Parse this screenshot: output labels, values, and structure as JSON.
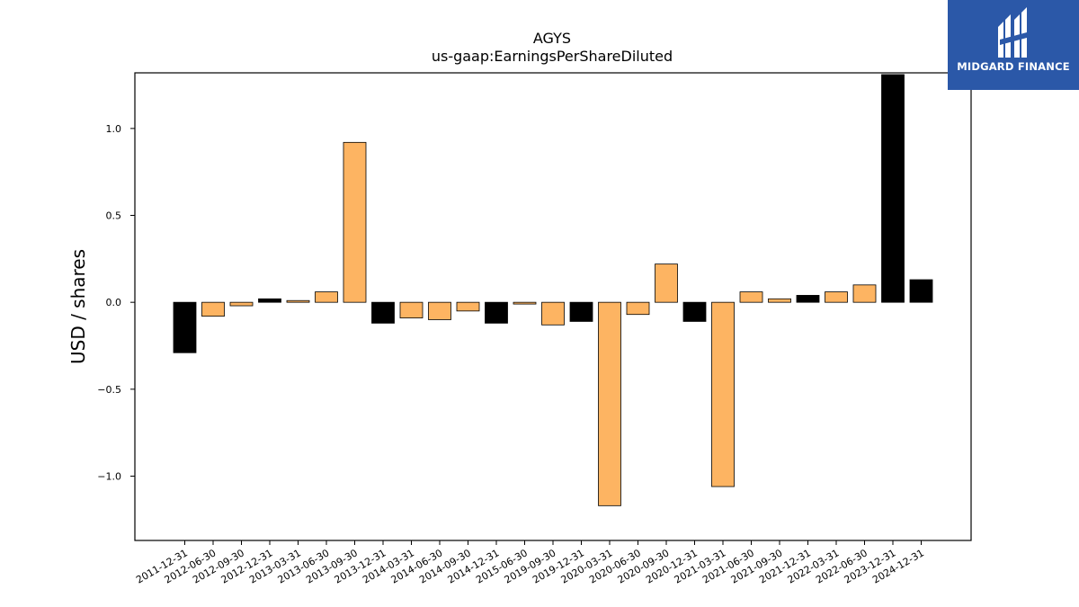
{
  "chart_data": {
    "type": "bar",
    "title": "AGYS",
    "subtitle": "us-gaap:EarningsPerShareDiluted",
    "xlabel": "",
    "ylabel": "USD / shares",
    "ylim": [
      -1.37,
      1.32
    ],
    "yticks": [
      -1.0,
      -0.5,
      0.0,
      0.5,
      1.0
    ],
    "ytick_labels": [
      "−1.0",
      "−0.5",
      "0.0",
      "0.5",
      "1.0"
    ],
    "grid": false,
    "categories": [
      "2011-12-31",
      "2012-06-30",
      "2012-09-30",
      "2012-12-31",
      "2013-03-31",
      "2013-06-30",
      "2013-09-30",
      "2013-12-31",
      "2014-03-31",
      "2014-06-30",
      "2014-09-30",
      "2014-12-31",
      "2015-06-30",
      "2019-09-30",
      "2019-12-31",
      "2020-03-31",
      "2020-06-30",
      "2020-09-30",
      "2020-12-31",
      "2021-03-31",
      "2021-06-30",
      "2021-09-30",
      "2021-12-31",
      "2022-03-31",
      "2022-06-30",
      "2023-12-31",
      "2024-12-31"
    ],
    "values": [
      -0.29,
      -0.08,
      -0.02,
      0.02,
      0.01,
      0.06,
      0.92,
      -0.12,
      -0.09,
      -0.1,
      -0.05,
      -0.12,
      -0.01,
      -0.13,
      -0.11,
      -1.17,
      -0.07,
      0.22,
      -0.11,
      -1.06,
      0.06,
      0.02,
      0.04,
      0.06,
      0.1,
      1.31,
      0.13
    ],
    "bar_colors": [
      "#000000",
      "#fdb462",
      "#fdb462",
      "#000000",
      "#fdb462",
      "#fdb462",
      "#fdb462",
      "#000000",
      "#fdb462",
      "#fdb462",
      "#fdb462",
      "#000000",
      "#fdb462",
      "#fdb462",
      "#000000",
      "#fdb462",
      "#fdb462",
      "#fdb462",
      "#000000",
      "#fdb462",
      "#fdb462",
      "#fdb462",
      "#000000",
      "#fdb462",
      "#fdb462",
      "#000000",
      "#000000"
    ]
  },
  "logo": {
    "text": "MIDGARD FINANCE",
    "background": "#2b58a8",
    "icon": "midgard-logo-icon"
  }
}
